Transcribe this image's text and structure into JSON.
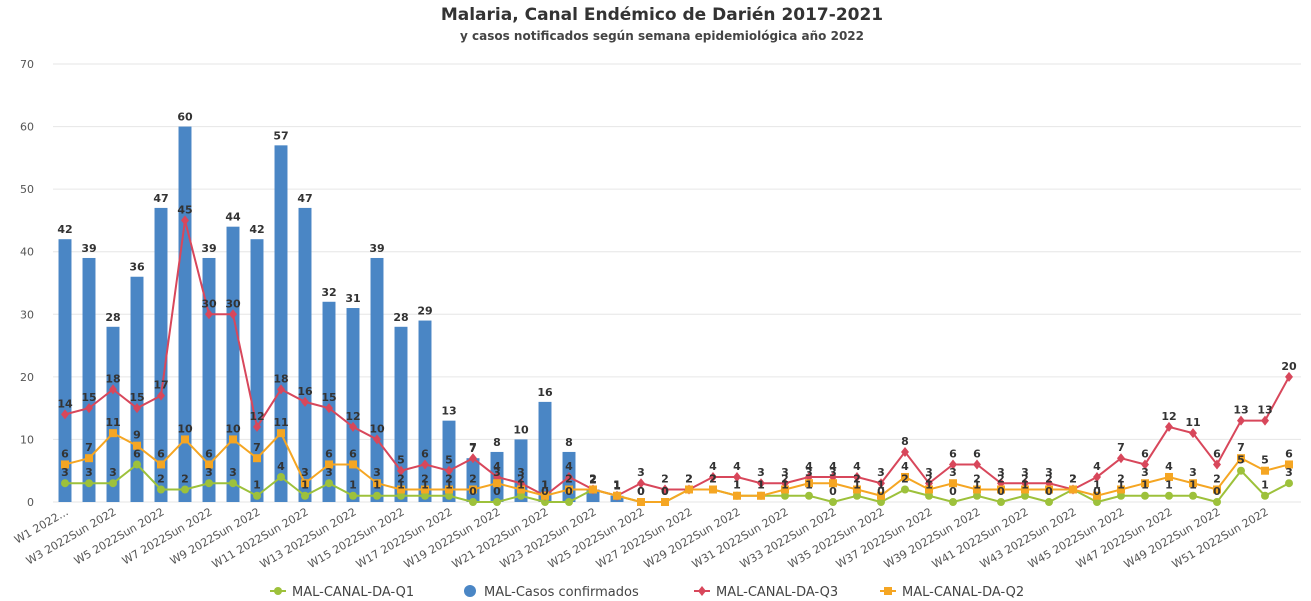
{
  "chart_data": {
    "type": "bar",
    "title": "Malaria, Canal Endémico de Darién 2017-2021",
    "subtitle": "y casos notificados según semana epidemiológica año 2022",
    "categories": [
      "W1 2022...",
      null,
      "W3 2022Sun 2022",
      null,
      "W5 2022Sun 2022",
      null,
      "W7 2022Sun 2022",
      null,
      "W9 2022Sun 2022",
      null,
      "W11 2022Sun 2022",
      null,
      "W13 2022Sun 2022",
      null,
      "W15 2022Sun 2022",
      null,
      "W17 2022Sun 2022",
      null,
      "W19 2022Sun 2022",
      null,
      "W21 2022Sun 2022",
      null,
      "W23 2022Sun 2022",
      null,
      "W25 2022Sun 2022",
      null,
      "W27 2022Sun 2022",
      null,
      "W29 2022Sun 2022",
      null,
      "W31 2022Sun 2022",
      null,
      "W33 2022Sun 2022",
      null,
      "W35 2022Sun 2022",
      null,
      "W37 2022Sun 2022",
      null,
      "W39 2022Sun 2022",
      null,
      "W41 2022Sun 2022",
      null,
      "W43 2022Sun 2022",
      null,
      "W45 2022Sun 2022",
      null,
      "W47 2022Sun 2022",
      null,
      "W49 2022Sun 2022",
      null,
      "W51 2022Sun 2022",
      null
    ],
    "series": [
      {
        "name": "MAL-CANAL-DA-Q1",
        "type": "line",
        "marker": "circle",
        "color": "#9dc13b",
        "values": [
          3,
          3,
          3,
          6,
          2,
          2,
          3,
          3,
          1,
          4,
          1,
          3,
          1,
          1,
          1,
          1,
          1,
          0,
          0,
          1,
          0,
          0,
          2,
          1,
          0,
          0,
          2,
          2,
          1,
          1,
          1,
          1,
          0,
          1,
          0,
          2,
          1,
          0,
          1,
          0,
          1,
          0,
          2,
          0,
          1,
          1,
          1,
          1,
          0,
          5,
          1,
          3
        ]
      },
      {
        "name": "MAL-Casos confirmados",
        "type": "bar",
        "marker": "circle",
        "color": "#4a86c5",
        "values": [
          42,
          39,
          28,
          36,
          47,
          60,
          39,
          44,
          42,
          57,
          47,
          32,
          31,
          39,
          28,
          29,
          13,
          7,
          8,
          10,
          16,
          8,
          2,
          1,
          null,
          null,
          null,
          null,
          null,
          null,
          null,
          null,
          null,
          null,
          null,
          null,
          null,
          null,
          null,
          null,
          null,
          null,
          null,
          null,
          null,
          null,
          null,
          null,
          null,
          null,
          null,
          null
        ]
      },
      {
        "name": "MAL-CANAL-DA-Q3",
        "type": "line",
        "marker": "diamond",
        "color": "#d8475b",
        "values": [
          14,
          15,
          18,
          15,
          17,
          45,
          30,
          30,
          12,
          18,
          16,
          15,
          12,
          10,
          5,
          6,
          5,
          7,
          4,
          3,
          1,
          4,
          2,
          1,
          3,
          2,
          2,
          4,
          4,
          3,
          3,
          4,
          4,
          4,
          3,
          8,
          3,
          6,
          6,
          3,
          3,
          3,
          2,
          4,
          7,
          6,
          12,
          11,
          6,
          13,
          13,
          20
        ]
      },
      {
        "name": "MAL-CANAL-DA-Q2",
        "type": "line",
        "marker": "square",
        "color": "#f5a623",
        "values": [
          6,
          7,
          11,
          9,
          6,
          10,
          6,
          10,
          7,
          11,
          3,
          6,
          6,
          3,
          2,
          2,
          2,
          2,
          3,
          2,
          1,
          2,
          2,
          1,
          0,
          0,
          2,
          2,
          1,
          1,
          2,
          3,
          3,
          2,
          1,
          4,
          2,
          3,
          2,
          2,
          2,
          2,
          2,
          1,
          2,
          3,
          4,
          3,
          2,
          7,
          5,
          6
        ]
      }
    ],
    "ylim": [
      0,
      70
    ],
    "yticks": [
      0,
      10,
      20,
      30,
      40,
      50,
      60,
      70
    ],
    "grid": true,
    "legend": "bottom"
  }
}
